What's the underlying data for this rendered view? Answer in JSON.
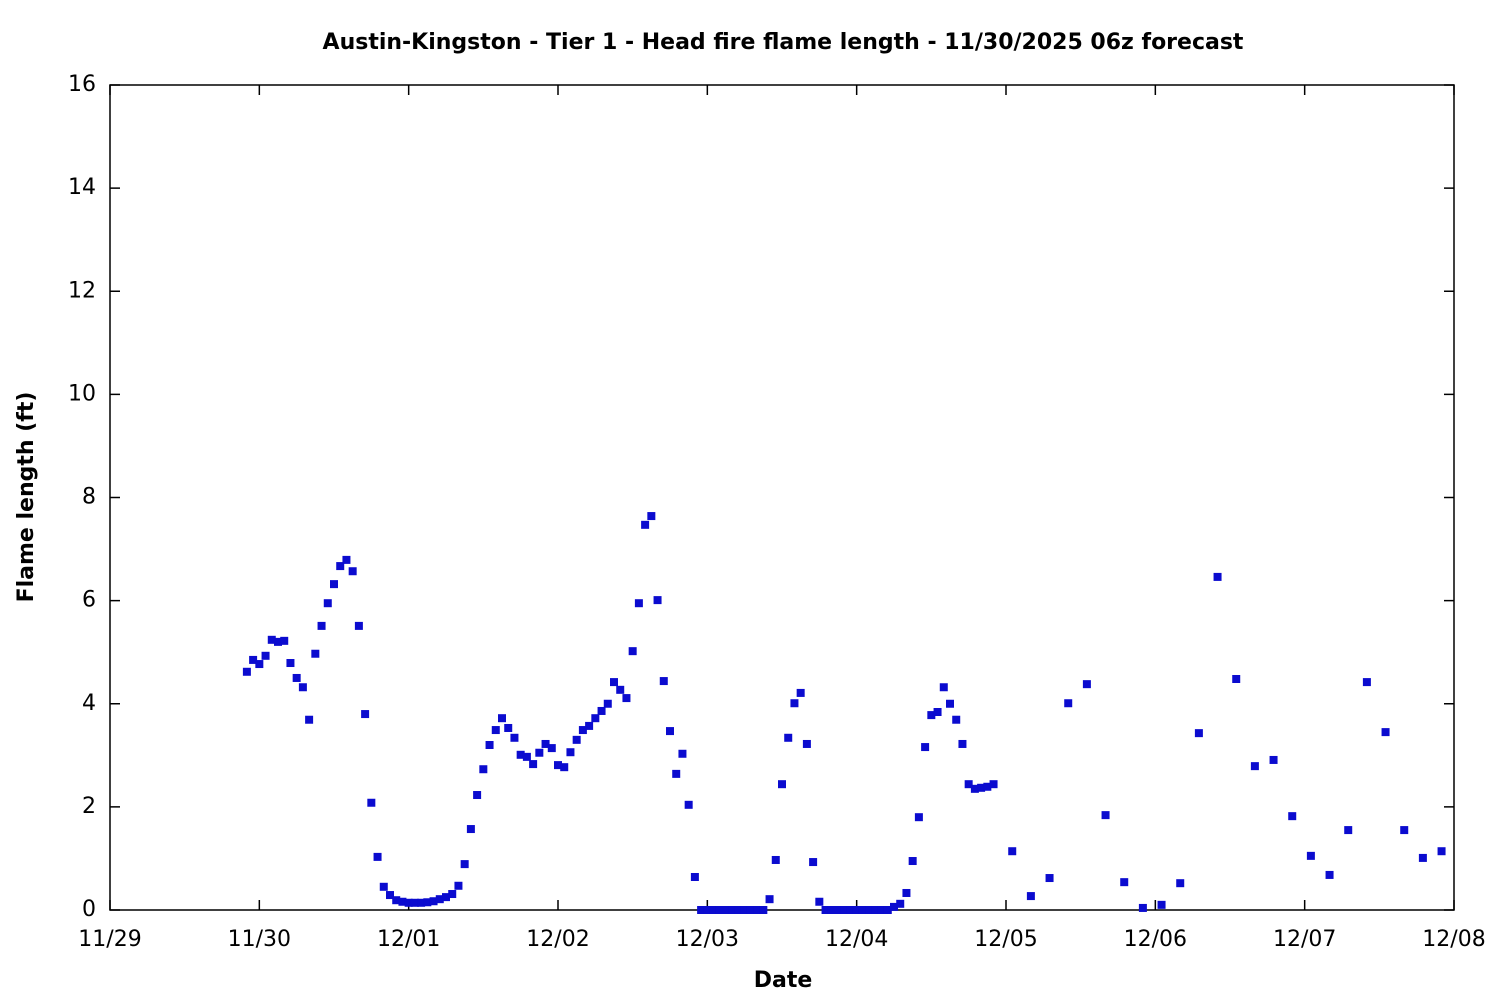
{
  "chart_data": {
    "type": "scatter",
    "title": "Austin-Kingston - Tier 1 - Head fire flame length - 11/30/2025 06z forecast",
    "xlabel": "Date",
    "ylabel": "Flame length (ft)",
    "xlim": [
      0,
      216
    ],
    "xticks": [
      {
        "value": 0,
        "label": "11/29"
      },
      {
        "value": 24,
        "label": "11/30"
      },
      {
        "value": 48,
        "label": "12/01"
      },
      {
        "value": 72,
        "label": "12/02"
      },
      {
        "value": 96,
        "label": "12/03"
      },
      {
        "value": 120,
        "label": "12/04"
      },
      {
        "value": 144,
        "label": "12/05"
      },
      {
        "value": 168,
        "label": "12/06"
      },
      {
        "value": 192,
        "label": "12/07"
      },
      {
        "value": 216,
        "label": "12/08"
      }
    ],
    "ylim": [
      0,
      16
    ],
    "yticks": [
      0,
      2,
      4,
      6,
      8,
      10,
      12,
      14,
      16
    ],
    "color": "#0b0bcf",
    "x": [
      22,
      23,
      24,
      25,
      26,
      27,
      28,
      29,
      30,
      31,
      32,
      33,
      34,
      35,
      36,
      37,
      38,
      39,
      40,
      41,
      42,
      43,
      44,
      45,
      46,
      47,
      48,
      49,
      50,
      51,
      52,
      53,
      54,
      55,
      56,
      57,
      58,
      59,
      60,
      61,
      62,
      63,
      64,
      65,
      66,
      67,
      68,
      69,
      70,
      71,
      72,
      73,
      74,
      75,
      76,
      77,
      78,
      79,
      80,
      81,
      82,
      83,
      84,
      85,
      86,
      87,
      88,
      89,
      90,
      91,
      92,
      93,
      94,
      95,
      96,
      97,
      98,
      99,
      100,
      101,
      102,
      103,
      104,
      105,
      106,
      107,
      108,
      109,
      110,
      111,
      112,
      113,
      114,
      115,
      116,
      117,
      118,
      119,
      120,
      121,
      122,
      123,
      124,
      125,
      126,
      127,
      128,
      129,
      130,
      131,
      132,
      133,
      134,
      135,
      136,
      137,
      138,
      139,
      140,
      141,
      142,
      145,
      148,
      151,
      154,
      157,
      160,
      163,
      166,
      169,
      172,
      175,
      178,
      181,
      184,
      187,
      190,
      193,
      196,
      199,
      202,
      205,
      208,
      211,
      214
    ],
    "values": [
      4.62,
      4.85,
      4.77,
      4.93,
      5.24,
      5.2,
      5.22,
      4.79,
      4.5,
      4.32,
      3.69,
      4.97,
      5.51,
      5.95,
      6.32,
      6.67,
      6.79,
      6.57,
      5.51,
      3.8,
      2.08,
      1.03,
      0.45,
      0.29,
      0.19,
      0.16,
      0.14,
      0.14,
      0.14,
      0.15,
      0.17,
      0.21,
      0.25,
      0.31,
      0.47,
      0.89,
      1.57,
      2.23,
      2.73,
      3.2,
      3.49,
      3.72,
      3.53,
      3.34,
      3.01,
      2.97,
      2.83,
      3.05,
      3.22,
      3.14,
      2.81,
      2.77,
      3.06,
      3.3,
      3.49,
      3.57,
      3.72,
      3.86,
      4.0,
      4.42,
      4.27,
      4.11,
      5.02,
      5.95,
      7.47,
      7.64,
      6.01,
      4.44,
      3.47,
      2.64,
      3.03,
      2.04,
      0.64,
      0,
      0,
      0,
      0,
      0,
      0,
      0,
      0,
      0,
      0,
      0,
      0.21,
      0.97,
      2.44,
      3.34,
      4.01,
      4.21,
      3.22,
      0.93,
      0.16,
      0,
      0,
      0,
      0,
      0,
      0,
      0,
      0,
      0,
      0,
      0,
      0.06,
      0.12,
      0.33,
      0.95,
      1.8,
      3.16,
      3.78,
      3.84,
      4.32,
      4.0,
      3.69,
      3.22,
      2.44,
      2.35,
      2.37,
      2.39,
      2.44,
      1.14,
      0.27,
      0.62,
      4.01,
      4.38,
      1.84,
      0.54,
      0.04,
      0.1,
      0.52,
      3.43,
      6.46,
      4.48,
      2.79,
      2.91,
      1.82,
      1.05,
      0.68,
      1.55,
      4.42,
      3.45,
      1.55,
      1.01,
      1.14
    ]
  }
}
